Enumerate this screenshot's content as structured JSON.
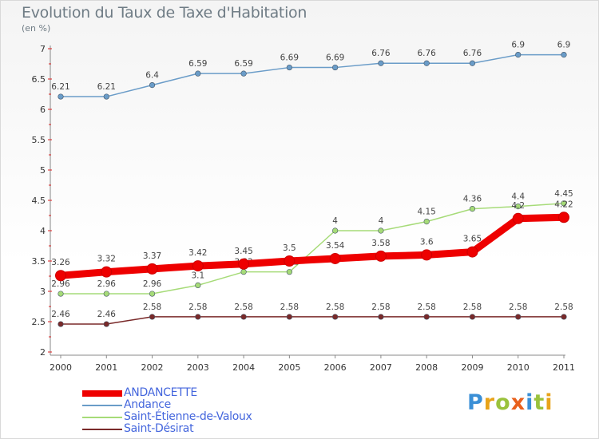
{
  "title": "Evolution du Taux de Taxe d'Habitation",
  "subtitle": "(en %)",
  "logo": {
    "letters": [
      "P",
      "r",
      "o",
      "x",
      "i",
      "t",
      "i"
    ],
    "colors": [
      "#3a8fd6",
      "#e8a319",
      "#9ac23c",
      "#e8601c",
      "#3a8fd6",
      "#9ac23c",
      "#e8a319"
    ]
  },
  "chart_data": {
    "type": "line",
    "categories": [
      "2000",
      "2001",
      "2002",
      "2003",
      "2004",
      "2005",
      "2006",
      "2007",
      "2008",
      "2009",
      "2010",
      "2011"
    ],
    "ylim": [
      2,
      7
    ],
    "yticks": [
      "2",
      "2.5",
      "3",
      "3.5",
      "4",
      "4.5",
      "5",
      "5.5",
      "6",
      "6.5",
      "7"
    ],
    "grid": false,
    "legend_position": "bottom-left",
    "series": [
      {
        "name": "Andance",
        "color": "#6a9cc8",
        "values": [
          6.21,
          6.21,
          6.4,
          6.59,
          6.59,
          6.69,
          6.69,
          6.76,
          6.76,
          6.76,
          6.9,
          6.9
        ],
        "labels": [
          "6.21",
          "6.21",
          "6.4",
          "6.59",
          "6.59",
          "6.69",
          "6.69",
          "6.76",
          "6.76",
          "6.76",
          "6.9",
          "6.9"
        ]
      },
      {
        "name": "Saint-Étienne-de-Valoux",
        "color": "#a6db78",
        "values": [
          2.96,
          2.96,
          2.96,
          3.1,
          3.32,
          3.32,
          4,
          4,
          4.15,
          4.36,
          4.4,
          4.45
        ],
        "labels": [
          "2.96",
          "2.96",
          "2.96",
          "3.1",
          "3.32",
          "3.32",
          "4",
          "4",
          "4.15",
          "4.36",
          "4.4",
          "4.45"
        ]
      },
      {
        "name": "Saint-Désirat",
        "color": "#7a2a2a",
        "values": [
          2.46,
          2.46,
          2.58,
          2.58,
          2.58,
          2.58,
          2.58,
          2.58,
          2.58,
          2.58,
          2.58,
          2.58
        ],
        "labels": [
          "2.46",
          "2.46",
          "2.58",
          "2.58",
          "2.58",
          "2.58",
          "2.58",
          "2.58",
          "2.58",
          "2.58",
          "2.58",
          "2.58"
        ]
      },
      {
        "name": "ANDANCETTE",
        "color": "#ee0000",
        "values": [
          3.26,
          3.32,
          3.37,
          3.42,
          3.45,
          3.5,
          3.54,
          3.58,
          3.6,
          3.65,
          4.2,
          4.22
        ],
        "labels": [
          "3.26",
          "3.32",
          "3.37",
          "3.42",
          "3.45",
          "3.5",
          "3.54",
          "3.58",
          "3.6",
          "3.65",
          "4.2",
          "4.22"
        ]
      }
    ],
    "legend": [
      {
        "name": "ANDANCETTE",
        "color": "#ee0000"
      },
      {
        "name": "Andance",
        "color": "#6a9cc8"
      },
      {
        "name": "Saint-Étienne-de-Valoux",
        "color": "#a6db78"
      },
      {
        "name": "Saint-Désirat",
        "color": "#7a2a2a"
      }
    ]
  }
}
